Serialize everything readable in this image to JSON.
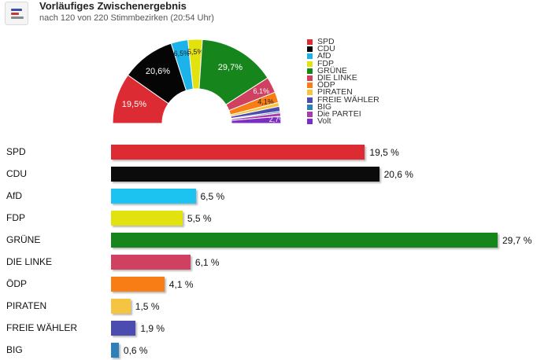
{
  "header": {
    "title": "Vorläufiges Zwischenergebnis",
    "subtitle": "nach 120 von 220 Stimmbezirken (20:54 Uhr)",
    "icon": "bar-chart-icon"
  },
  "chart_data": [
    {
      "type": "pie",
      "variant": "semicircle-donut",
      "legend_position": "right",
      "slices": [
        {
          "name": "SPD",
          "value": 19.5,
          "label": "19,5%",
          "color": "#dc2b33"
        },
        {
          "name": "CDU",
          "value": 20.6,
          "label": "20,6%",
          "color": "#050505"
        },
        {
          "name": "AfD",
          "value": 6.5,
          "label": "6,5%",
          "color": "#1cb3ea"
        },
        {
          "name": "FDP",
          "value": 5.5,
          "label": "5,5%",
          "color": "#e2e20f"
        },
        {
          "name": "GRÜNE",
          "value": 29.7,
          "label": "29,7%",
          "color": "#16861c"
        },
        {
          "name": "DIE LINKE",
          "value": 6.1,
          "label": "6,1%",
          "color": "#d04060"
        },
        {
          "name": "ÖDP",
          "value": 4.1,
          "label": "4,1%",
          "color": "#f77d14"
        },
        {
          "name": "PIRATEN",
          "value": 1.5,
          "label": "",
          "color": "#f5c542"
        },
        {
          "name": "FREIE WÄHLER",
          "value": 1.9,
          "label": "",
          "color": "#4b4bb0"
        },
        {
          "name": "BIG",
          "value": 0.6,
          "label": "",
          "color": "#2f7fb8"
        },
        {
          "name": "Die PARTEI",
          "value": 1.3,
          "label": "",
          "color": "#a93aa9"
        },
        {
          "name": "Volt",
          "value": 2.7,
          "label": "2,7%",
          "color": "#7a2ec4"
        }
      ]
    },
    {
      "type": "bar",
      "orientation": "horizontal",
      "xlim": [
        0,
        30
      ],
      "categories": [
        "SPD",
        "CDU",
        "AfD",
        "FDP",
        "GRÜNE",
        "DIE LINKE",
        "ÖDP",
        "PIRATEN",
        "FREIE WÄHLER",
        "BIG"
      ],
      "values": [
        19.5,
        20.6,
        6.5,
        5.5,
        29.7,
        6.1,
        4.1,
        1.5,
        1.9,
        0.6
      ],
      "labels": [
        "19,5 %",
        "20,6 %",
        "6,5 %",
        "5,5 %",
        "29,7 %",
        "6,1 %",
        "4,1 %",
        "1,5 %",
        "1,9 %",
        "0,6 %"
      ],
      "colors": [
        "#dc2b33",
        "#0b0b0b",
        "#1cc3f0",
        "#e2e20f",
        "#16861c",
        "#d04060",
        "#f77d14",
        "#f5c542",
        "#4b4bb0",
        "#2f7fb8"
      ]
    }
  ]
}
